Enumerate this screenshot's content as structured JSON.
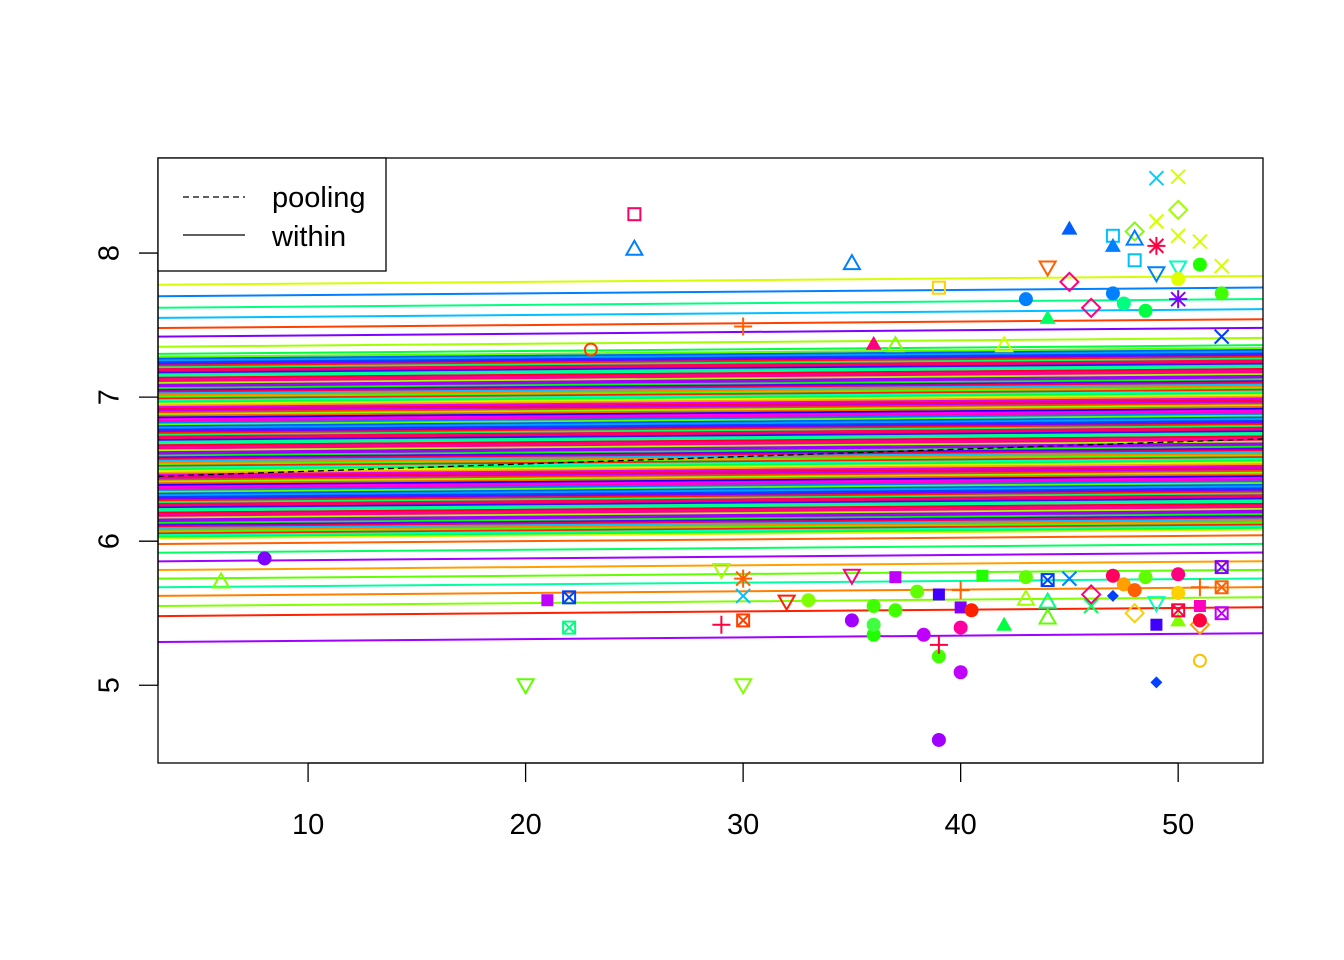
{
  "chart_data": {
    "type": "scatter",
    "title": "",
    "xlabel": "",
    "ylabel": "",
    "xlim": [
      3.1,
      53.9
    ],
    "ylim": [
      4.46,
      8.66
    ],
    "x_ticks": [
      10,
      20,
      30,
      40,
      50
    ],
    "y_ticks": [
      5,
      6,
      7,
      8
    ],
    "x_tick_labels": [
      "10",
      "20",
      "30",
      "40",
      "50"
    ],
    "y_tick_labels": [
      "5",
      "6",
      "7",
      "8"
    ],
    "grid": false,
    "legend": {
      "placement": "top-left",
      "entries": [
        {
          "label": "pooling",
          "line_style": "dashed",
          "color": "#000000"
        },
        {
          "label": "within",
          "line_style": "solid",
          "color": "#000000"
        }
      ]
    },
    "pooling_line": {
      "x": [
        3.1,
        53.9
      ],
      "y": [
        6.45,
        6.71
      ],
      "color": "#000000"
    },
    "within_lines": [
      {
        "intercept": 7.78,
        "color": "#d4ff00"
      },
      {
        "intercept": 7.7,
        "color": "#0080ff"
      },
      {
        "intercept": 7.62,
        "color": "#00ff80"
      },
      {
        "intercept": 7.55,
        "color": "#00c0ff"
      },
      {
        "intercept": 7.48,
        "color": "#ff4000"
      },
      {
        "intercept": 7.42,
        "color": "#8000ff"
      },
      {
        "intercept": 7.35,
        "color": "#a0ff00"
      },
      {
        "intercept": 7.3,
        "color": "#00ff40"
      },
      {
        "intercept": 7.24,
        "color": "#ff00c0"
      },
      {
        "intercept": 7.18,
        "color": "#4000ff"
      },
      {
        "intercept": 7.12,
        "color": "#ff0040"
      },
      {
        "intercept": 7.06,
        "color": "#c000ff"
      },
      {
        "intercept": 7.0,
        "color": "#0040ff"
      },
      {
        "intercept": 6.94,
        "color": "#ff0080"
      },
      {
        "intercept": 6.88,
        "color": "#00ffc0"
      },
      {
        "intercept": 6.82,
        "color": "#ff00ff"
      },
      {
        "intercept": 6.76,
        "color": "#ff0060"
      },
      {
        "intercept": 6.7,
        "color": "#6000ff"
      },
      {
        "intercept": 6.64,
        "color": "#ff0040"
      },
      {
        "intercept": 6.58,
        "color": "#00a0ff"
      },
      {
        "intercept": 6.52,
        "color": "#ff00a0"
      },
      {
        "intercept": 6.46,
        "color": "#ff2000"
      },
      {
        "intercept": 6.4,
        "color": "#2000ff"
      },
      {
        "intercept": 6.34,
        "color": "#ff0060"
      },
      {
        "intercept": 6.28,
        "color": "#00ff00"
      },
      {
        "intercept": 6.22,
        "color": "#e000ff"
      },
      {
        "intercept": 6.16,
        "color": "#0060ff"
      },
      {
        "intercept": 6.1,
        "color": "#ff0020"
      },
      {
        "intercept": 6.04,
        "color": "#40ff00"
      },
      {
        "intercept": 5.98,
        "color": "#ff6000"
      },
      {
        "intercept": 5.92,
        "color": "#00ff60"
      },
      {
        "intercept": 5.86,
        "color": "#a000ff"
      },
      {
        "intercept": 5.8,
        "color": "#ffa000"
      },
      {
        "intercept": 5.74,
        "color": "#60ff00"
      },
      {
        "intercept": 5.68,
        "color": "#00ffa0"
      },
      {
        "intercept": 5.62,
        "color": "#ff8000"
      },
      {
        "intercept": 5.55,
        "color": "#80ff00"
      },
      {
        "intercept": 5.48,
        "color": "#ff2000"
      },
      {
        "intercept": 5.3,
        "color": "#a000ff"
      }
    ],
    "within_slope": 0.0012,
    "points": [
      {
        "x": 25,
        "y": 8.27,
        "shape": "square-open",
        "color": "#ff0060"
      },
      {
        "x": 25,
        "y": 8.03,
        "shape": "triangle-open",
        "color": "#0080ff"
      },
      {
        "x": 35,
        "y": 7.93,
        "shape": "triangle-open",
        "color": "#0080ff"
      },
      {
        "x": 39,
        "y": 7.76,
        "shape": "square-open",
        "color": "#ffd000"
      },
      {
        "x": 45,
        "y": 8.17,
        "shape": "triangle-filled",
        "color": "#0060ff"
      },
      {
        "x": 44,
        "y": 7.9,
        "shape": "triangle-down-open",
        "color": "#ff6000"
      },
      {
        "x": 43,
        "y": 7.68,
        "shape": "circle-filled",
        "color": "#0080ff"
      },
      {
        "x": 45,
        "y": 7.8,
        "shape": "diamond-open",
        "color": "#ff0080"
      },
      {
        "x": 47,
        "y": 8.12,
        "shape": "square-open",
        "color": "#00c0ff"
      },
      {
        "x": 47,
        "y": 8.05,
        "shape": "triangle-filled",
        "color": "#0080ff"
      },
      {
        "x": 47,
        "y": 7.72,
        "shape": "circle-filled",
        "color": "#0080ff"
      },
      {
        "x": 48,
        "y": 8.15,
        "shape": "diamond-open",
        "color": "#80ff00"
      },
      {
        "x": 48,
        "y": 8.1,
        "shape": "triangle-open",
        "color": "#0080ff"
      },
      {
        "x": 48,
        "y": 7.95,
        "shape": "square-open",
        "color": "#00c0ff"
      },
      {
        "x": 49,
        "y": 8.52,
        "shape": "x",
        "color": "#00d0ff"
      },
      {
        "x": 49,
        "y": 8.22,
        "shape": "x",
        "color": "#d4ff00"
      },
      {
        "x": 49,
        "y": 8.05,
        "shape": "star",
        "color": "#ff0040"
      },
      {
        "x": 49,
        "y": 7.86,
        "shape": "triangle-down-open",
        "color": "#0080ff"
      },
      {
        "x": 50,
        "y": 8.53,
        "shape": "x",
        "color": "#d4ff00"
      },
      {
        "x": 50,
        "y": 8.3,
        "shape": "diamond-open",
        "color": "#a0ff00"
      },
      {
        "x": 50,
        "y": 8.12,
        "shape": "x",
        "color": "#d4ff00"
      },
      {
        "x": 50,
        "y": 7.9,
        "shape": "triangle-down-open",
        "color": "#00ffc0"
      },
      {
        "x": 50,
        "y": 7.82,
        "shape": "circle-filled",
        "color": "#e0ff00"
      },
      {
        "x": 50,
        "y": 7.68,
        "shape": "star",
        "color": "#8000ff"
      },
      {
        "x": 51,
        "y": 8.08,
        "shape": "x",
        "color": "#d4ff00"
      },
      {
        "x": 51,
        "y": 7.92,
        "shape": "circle-filled",
        "color": "#20ff00"
      },
      {
        "x": 52,
        "y": 7.91,
        "shape": "x",
        "color": "#d4ff00"
      },
      {
        "x": 52,
        "y": 7.72,
        "shape": "circle-filled",
        "color": "#40ff00"
      },
      {
        "x": 47.5,
        "y": 7.65,
        "shape": "circle-filled",
        "color": "#00ff80"
      },
      {
        "x": 48.5,
        "y": 7.6,
        "shape": "circle-filled",
        "color": "#00ff40"
      },
      {
        "x": 46,
        "y": 7.62,
        "shape": "diamond-open",
        "color": "#ff0080"
      },
      {
        "x": 44,
        "y": 7.55,
        "shape": "triangle-filled",
        "color": "#00ff60"
      },
      {
        "x": 30,
        "y": 7.49,
        "shape": "plus",
        "color": "#ff6000"
      },
      {
        "x": 23,
        "y": 7.33,
        "shape": "circle-open",
        "color": "#ff4000"
      },
      {
        "x": 36,
        "y": 7.37,
        "shape": "triangle-filled",
        "color": "#ff0080"
      },
      {
        "x": 37,
        "y": 7.36,
        "shape": "triangle-open",
        "color": "#80ff00"
      },
      {
        "x": 42,
        "y": 7.36,
        "shape": "triangle-open",
        "color": "#d4ff00"
      },
      {
        "x": 52,
        "y": 7.42,
        "shape": "x",
        "color": "#0040ff"
      },
      {
        "x": 6,
        "y": 5.72,
        "shape": "triangle-open",
        "color": "#80ff00"
      },
      {
        "x": 8,
        "y": 5.88,
        "shape": "circle-filled",
        "color": "#8000ff"
      },
      {
        "x": 20,
        "y": 5.0,
        "shape": "triangle-down-open",
        "color": "#60ff00"
      },
      {
        "x": 21,
        "y": 5.59,
        "shape": "square-filled",
        "color": "#c000ff"
      },
      {
        "x": 22,
        "y": 5.61,
        "shape": "square-x",
        "color": "#0040ff"
      },
      {
        "x": 22,
        "y": 5.4,
        "shape": "square-x",
        "color": "#00ff80"
      },
      {
        "x": 29,
        "y": 5.42,
        "shape": "plus",
        "color": "#ff0040"
      },
      {
        "x": 29,
        "y": 5.8,
        "shape": "triangle-down-open",
        "color": "#a0ff00"
      },
      {
        "x": 30,
        "y": 5.0,
        "shape": "triangle-down-open",
        "color": "#80ff00"
      },
      {
        "x": 30,
        "y": 5.45,
        "shape": "square-x",
        "color": "#ff4000"
      },
      {
        "x": 30,
        "y": 5.62,
        "shape": "x",
        "color": "#00c0ff"
      },
      {
        "x": 30,
        "y": 5.74,
        "shape": "star",
        "color": "#ff6000"
      },
      {
        "x": 32,
        "y": 5.58,
        "shape": "triangle-down-open",
        "color": "#ff2000"
      },
      {
        "x": 33,
        "y": 5.59,
        "shape": "circle-filled",
        "color": "#80ff00"
      },
      {
        "x": 35,
        "y": 5.45,
        "shape": "circle-filled",
        "color": "#a000ff"
      },
      {
        "x": 35,
        "y": 5.76,
        "shape": "triangle-down-open",
        "color": "#ff0080"
      },
      {
        "x": 36,
        "y": 5.35,
        "shape": "circle-filled",
        "color": "#20ff00"
      },
      {
        "x": 36,
        "y": 5.42,
        "shape": "circle-filled",
        "color": "#40ff40"
      },
      {
        "x": 36,
        "y": 5.55,
        "shape": "circle-filled",
        "color": "#40ff00"
      },
      {
        "x": 37,
        "y": 5.52,
        "shape": "circle-filled",
        "color": "#40ff00"
      },
      {
        "x": 37,
        "y": 5.75,
        "shape": "square-filled",
        "color": "#c000ff"
      },
      {
        "x": 38.3,
        "y": 5.35,
        "shape": "circle-filled",
        "color": "#c000ff"
      },
      {
        "x": 38,
        "y": 5.65,
        "shape": "circle-filled",
        "color": "#60ff00"
      },
      {
        "x": 39,
        "y": 4.62,
        "shape": "circle-filled",
        "color": "#a000ff"
      },
      {
        "x": 39,
        "y": 5.2,
        "shape": "circle-filled",
        "color": "#40ff00"
      },
      {
        "x": 39,
        "y": 5.28,
        "shape": "plus",
        "color": "#ff0040"
      },
      {
        "x": 39,
        "y": 5.63,
        "shape": "square-filled",
        "color": "#4000ff"
      },
      {
        "x": 40,
        "y": 5.09,
        "shape": "circle-filled",
        "color": "#c000ff"
      },
      {
        "x": 40,
        "y": 5.4,
        "shape": "circle-filled",
        "color": "#ff00a0"
      },
      {
        "x": 40,
        "y": 5.54,
        "shape": "square-filled",
        "color": "#8000ff"
      },
      {
        "x": 40.5,
        "y": 5.52,
        "shape": "circle-filled",
        "color": "#ff2000"
      },
      {
        "x": 40,
        "y": 5.66,
        "shape": "plus",
        "color": "#ff6000"
      },
      {
        "x": 41,
        "y": 5.76,
        "shape": "square-filled",
        "color": "#20ff00"
      },
      {
        "x": 42,
        "y": 5.42,
        "shape": "triangle-filled",
        "color": "#00ff40"
      },
      {
        "x": 43,
        "y": 5.6,
        "shape": "triangle-open",
        "color": "#a0ff00"
      },
      {
        "x": 43,
        "y": 5.75,
        "shape": "circle-filled",
        "color": "#60ff00"
      },
      {
        "x": 44,
        "y": 5.47,
        "shape": "triangle-open",
        "color": "#60ff00"
      },
      {
        "x": 44,
        "y": 5.58,
        "shape": "triangle-open",
        "color": "#00ff80"
      },
      {
        "x": 44,
        "y": 5.73,
        "shape": "square-x",
        "color": "#0040ff"
      },
      {
        "x": 45,
        "y": 5.74,
        "shape": "x",
        "color": "#0080ff"
      },
      {
        "x": 46,
        "y": 5.55,
        "shape": "x",
        "color": "#00ff60"
      },
      {
        "x": 46,
        "y": 5.63,
        "shape": "diamond-open",
        "color": "#ff0080"
      },
      {
        "x": 47,
        "y": 5.62,
        "shape": "diamond-filled",
        "color": "#0040ff"
      },
      {
        "x": 47,
        "y": 5.76,
        "shape": "circle-filled",
        "color": "#ff0060"
      },
      {
        "x": 47.5,
        "y": 5.7,
        "shape": "circle-filled",
        "color": "#ffa000"
      },
      {
        "x": 48,
        "y": 5.5,
        "shape": "diamond-open",
        "color": "#ffd000"
      },
      {
        "x": 48,
        "y": 5.66,
        "shape": "circle-filled",
        "color": "#ff6000"
      },
      {
        "x": 48.5,
        "y": 5.75,
        "shape": "circle-filled",
        "color": "#60ff00"
      },
      {
        "x": 49,
        "y": 5.02,
        "shape": "diamond-filled",
        "color": "#0040ff"
      },
      {
        "x": 49,
        "y": 5.42,
        "shape": "square-filled",
        "color": "#4000ff"
      },
      {
        "x": 49,
        "y": 5.57,
        "shape": "triangle-down-open",
        "color": "#00ffc0"
      },
      {
        "x": 50,
        "y": 5.45,
        "shape": "triangle-filled",
        "color": "#80ff00"
      },
      {
        "x": 50,
        "y": 5.52,
        "shape": "square-x",
        "color": "#ff0040"
      },
      {
        "x": 50,
        "y": 5.64,
        "shape": "circle-filled",
        "color": "#ffd000"
      },
      {
        "x": 50,
        "y": 5.77,
        "shape": "circle-filled",
        "color": "#ff0080"
      },
      {
        "x": 51,
        "y": 5.17,
        "shape": "circle-open",
        "color": "#ffc000"
      },
      {
        "x": 51,
        "y": 5.42,
        "shape": "diamond-open",
        "color": "#ffa000"
      },
      {
        "x": 51,
        "y": 5.45,
        "shape": "circle-filled",
        "color": "#ff0040"
      },
      {
        "x": 51,
        "y": 5.55,
        "shape": "square-filled",
        "color": "#ff00c0"
      },
      {
        "x": 51,
        "y": 5.68,
        "shape": "plus",
        "color": "#ff6000"
      },
      {
        "x": 52,
        "y": 5.5,
        "shape": "square-x",
        "color": "#c000ff"
      },
      {
        "x": 52,
        "y": 5.68,
        "shape": "square-x",
        "color": "#ff6000"
      },
      {
        "x": 52,
        "y": 5.82,
        "shape": "square-x",
        "color": "#8000ff"
      }
    ]
  }
}
